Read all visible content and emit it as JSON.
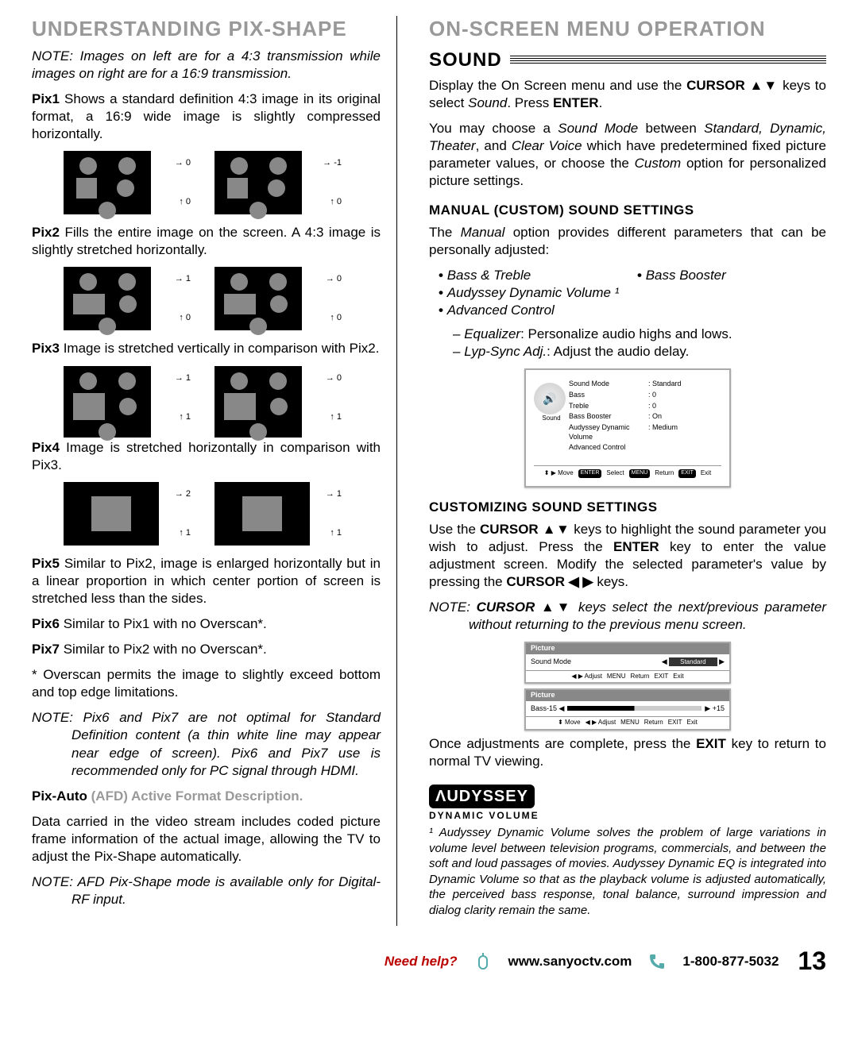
{
  "left": {
    "title": "UNDERSTANDING PIX-SHAPE",
    "note_top": "NOTE: Images on left are for a 4:3 transmission while images on right are for a 16:9 transmission.",
    "pix1_label": "Pix1",
    "pix1_text": " Shows a standard definition 4:3 image in its original format, a 16:9 wide image is slightly compressed horizontally.",
    "pix2_label": "Pix2",
    "pix2_text": " Fills the entire image on the screen. A 4:3 image is slightly stretched horizontally.",
    "pix3_label": "Pix3",
    "pix3_text": " Image is stretched vertically in comparison with Pix2.",
    "pix4_label": "Pix4",
    "pix4_text": " Image is stretched horizontally in comparison with Pix3.",
    "pix5_label": "Pix5",
    "pix5_text": " Similar to Pix2, image is enlarged horizontally but in a linear proportion in which center portion of screen is stretched less than the sides.",
    "pix6_label": "Pix6",
    "pix6_text": " Similar to Pix1 with no Overscan*.",
    "pix7_label": "Pix7",
    "pix7_text": " Similar to Pix2 with no Overscan*.",
    "overscan_note": "* Overscan permits the image to slightly exceed bottom and top edge limitations.",
    "pix67_note": "NOTE: Pix6 and Pix7 are not optimal for Standard Definition content (a thin white line may appear near edge of screen). Pix6 and Pix7 use is recommended only for PC signal through HDMI.",
    "pixauto_label": "Pix-Auto",
    "pixauto_sub": "  (AFD) Active Format Description.",
    "pixauto_text": "Data carried in the video stream includes coded picture frame information of the actual image, allowing the TV to adjust the Pix-Shape automatically.",
    "pixauto_note": "NOTE: AFD Pix-Shape mode is available only for Digital-RF input.",
    "fig_labels": {
      "p1_l_t": "→ 0",
      "p1_l_b": "↑ 0",
      "p1_r_t": "→ -1",
      "p1_r_b": "↑ 0",
      "p2_l_t": "→ 1",
      "p2_l_b": "↑ 0",
      "p2_r_t": "→ 0",
      "p2_r_b": "↑ 0",
      "p3_l_t": "→ 1",
      "p3_l_b": "↑ 1",
      "p3_r_t": "→ 0",
      "p3_r_b": "↑ 1",
      "p4_l_t": "→ 2",
      "p4_l_b": "↑ 1",
      "p4_r_t": "→ 1",
      "p4_r_b": "↑ 1"
    }
  },
  "right": {
    "title": "ON-SCREEN MENU OPERATION",
    "sound_label": "SOUND",
    "intro1_html": "Display the On Screen menu and use the <b>CURSOR ▲▼</b> keys to select <i>Sound</i>. Press <b>ENTER</b>.",
    "intro2_html": "You may choose a <i>Sound Mode</i> between <i>Standard, Dynamic, Theater</i>, and <i>Clear Voice</i> which have predetermined fixed picture parameter values, or choose the <i>Custom</i> option for personalized picture settings.",
    "manual_h": "MANUAL (CUSTOM) SOUND SETTINGS",
    "manual_intro_html": "The <i>Manual</i> option provides different parameters that can be personally adjusted:",
    "bullets_col1": [
      "Bass & Treble",
      "Audyssey Dynamic Volume ¹",
      "Advanced Control"
    ],
    "bullets_col2": [
      "Bass Booster"
    ],
    "sub1_html": "<i>Equalizer</i>: Personalize audio highs and lows.",
    "sub2_html": "<i>Lyp-Sync Adj.</i>: Adjust the audio delay.",
    "menu": {
      "icon_label": "Sound",
      "rows": [
        [
          "Sound Mode",
          ": Standard"
        ],
        [
          "Bass",
          ": 0"
        ],
        [
          "Treble",
          ": 0"
        ],
        [
          "Bass Booster",
          ": On"
        ],
        [
          "Audyssey Dynamic Volume",
          ": Medium"
        ],
        [
          "Advanced Control",
          ""
        ]
      ],
      "footer": [
        "⬍ ▶ Move",
        "ENTER",
        "Select",
        "MENU",
        "Return",
        "EXIT",
        "Exit"
      ]
    },
    "custom_h": "CUSTOMIZING SOUND SETTINGS",
    "custom_text_html": "Use the <b>CURSOR ▲▼</b> keys to highlight the sound parameter you wish to adjust. Press the <b>ENTER</b> key to enter the value adjustment screen. Modify the selected parameter's value by pressing the <b>CURSOR ◀ ▶</b> keys.",
    "custom_note_html": "NOTE: <b>CURSOR ▲▼</b> keys select the next/previous parameter without returning to the previous menu screen.",
    "small1": {
      "head": "Picture",
      "row_l": "Sound Mode",
      "row_r": "Standard",
      "foot": [
        "◀ ▶ Adjust",
        "MENU",
        "Return",
        "EXIT",
        "Exit"
      ]
    },
    "small2": {
      "head": "Picture",
      "row_l": "Bass",
      "n_l": "-15 ◀",
      "n_r": "▶ +15",
      "foot": [
        "⬍ Move",
        "◀ ▶ Adjust",
        "MENU",
        "Return",
        "EXIT",
        "Exit"
      ]
    },
    "after_text_html": "Once adjustments are complete, press the <b>EXIT</b> key to return to normal TV viewing.",
    "audyssey_brand": "ΛUDYSSEY",
    "audyssey_sub": "DYNAMIC VOLUME",
    "footnote_html": "¹ Audyssey Dynamic Volume solves the problem of large variations in volume level between television programs, commercials, and between the soft and loud passages of movies. Audyssey Dynamic EQ is integrated into Dynamic Volume so that as the playback volume is adjusted automatically, the perceived bass response, tonal balance, surround impression and dialog clarity remain the same."
  },
  "footer": {
    "need": "Need help?",
    "url": "www.sanyoctv.com",
    "phone": "1-800-877-5032",
    "page": "13"
  }
}
